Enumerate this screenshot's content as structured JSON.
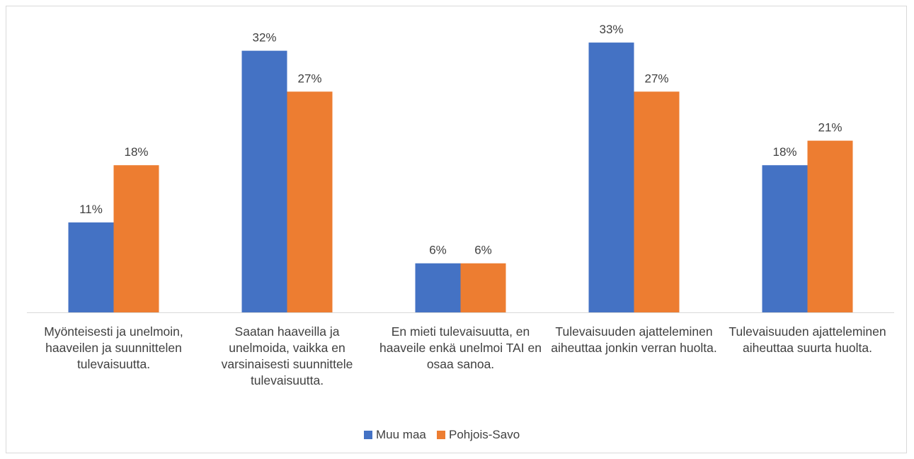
{
  "chart_data": {
    "type": "bar",
    "categories": [
      "Myönteisesti ja unelmoin, haaveilen ja suunnittelen tulevaisuutta.",
      "Saatan haaveilla ja unelmoida, vaikka en varsinaisesti suunnittele tulevaisuutta.",
      "En mieti tulevaisuutta, en haaveile enkä unelmoi TAI en osaa sanoa.",
      "Tulevaisuuden ajatteleminen aiheuttaa jonkin verran huolta.",
      "Tulevaisuuden ajatteleminen aiheuttaa suurta huolta."
    ],
    "series": [
      {
        "name": "Muu maa",
        "color": "#4472c4",
        "values": [
          11,
          32,
          6,
          33,
          18
        ],
        "value_labels": [
          "11%",
          "32%",
          "6%",
          "33%",
          "18%"
        ]
      },
      {
        "name": "Pohjois-Savo",
        "color": "#ed7d31",
        "values": [
          18,
          27,
          6,
          27,
          21
        ],
        "value_labels": [
          "18%",
          "27%",
          "6%",
          "27%",
          "21%"
        ]
      }
    ],
    "ylim": [
      0,
      35
    ],
    "legend": "bottom"
  }
}
